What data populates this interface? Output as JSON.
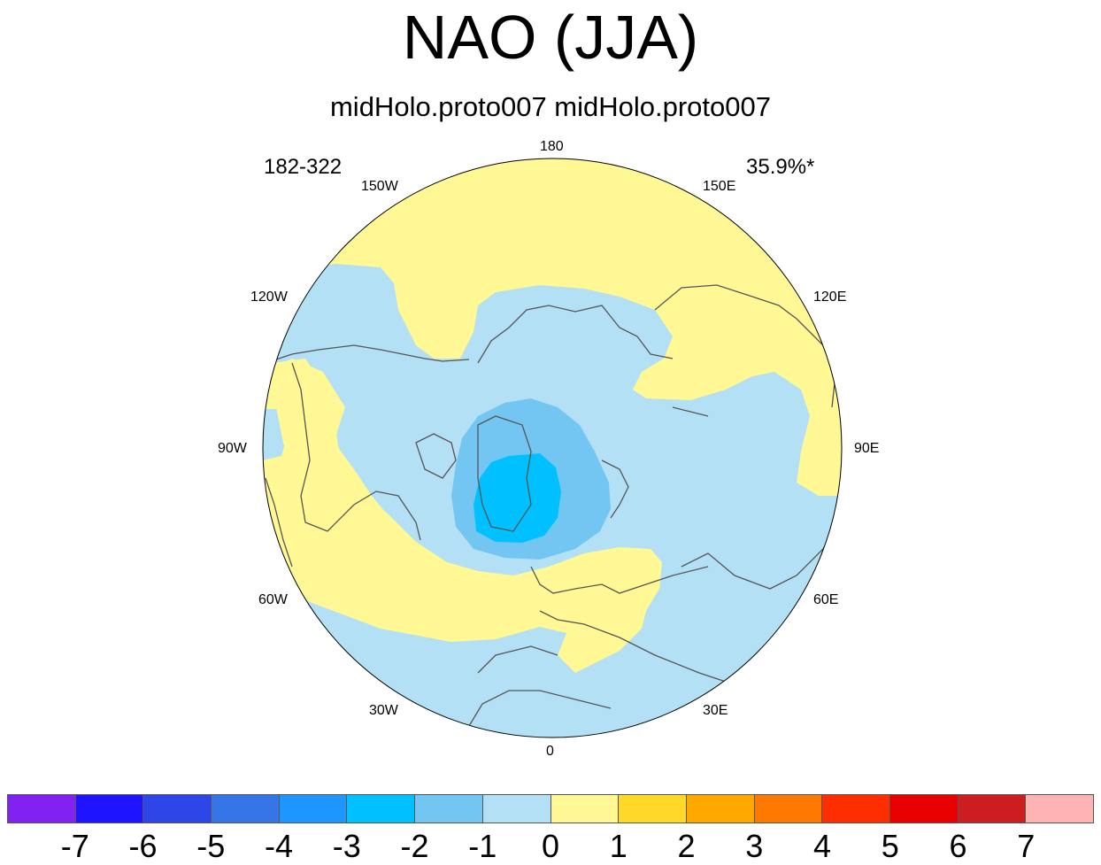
{
  "title": "NAO (JJA)",
  "subtitle": "midHolo.proto007  midHolo.proto007",
  "years_label": "182-322",
  "variance_label": "35.9%*",
  "longitude_labels": {
    "top": "180",
    "bottom": "0",
    "w150": "150W",
    "e150": "150E",
    "w120": "120W",
    "e120": "120E",
    "w90": "90W",
    "e90": "90E",
    "w60": "60W",
    "e60": "60E",
    "w30": "30W",
    "e30": "30E"
  },
  "colorbar": {
    "colors": [
      "#8122f0",
      "#1e14ff",
      "#2e46e8",
      "#3675e8",
      "#1e96ff",
      "#00c0ff",
      "#74c6f2",
      "#b4e0f5",
      "#fff894",
      "#ffd828",
      "#ffa800",
      "#ff7800",
      "#ff2e00",
      "#e80000",
      "#cc1e1e",
      "#ffb4b4"
    ],
    "labels": [
      "-7",
      "-6",
      "-5",
      "-4",
      "-3",
      "-2",
      "-1",
      "0",
      "1",
      "2",
      "3",
      "4",
      "5",
      "6",
      "7"
    ]
  },
  "map_colors": {
    "pos_0_1": "#fff894",
    "neg_0_1": "#b4e0f5",
    "neg_1_2": "#74c6f2",
    "neg_2_3": "#00c0ff",
    "coast": "#555555"
  }
}
